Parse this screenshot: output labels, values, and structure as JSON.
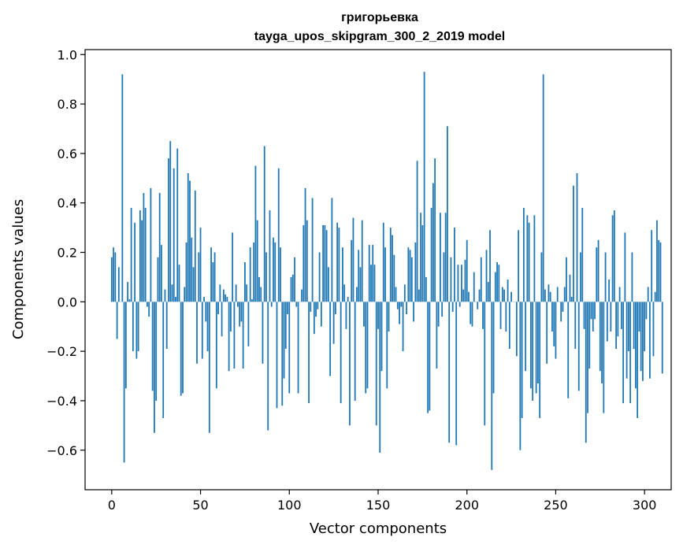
{
  "chart_data": {
    "type": "bar",
    "title": "григорьевка",
    "subtitle": "tayga_upos_skipgram_300_2_2019 model",
    "xlabel": "Vector components",
    "ylabel": "Components values",
    "xlim": [
      -15,
      315
    ],
    "ylim": [
      -0.76,
      1.02
    ],
    "xticks": [
      0,
      50,
      100,
      150,
      200,
      250,
      300
    ],
    "yticks": [
      -0.6,
      -0.4,
      -0.2,
      0.0,
      0.2,
      0.4,
      0.6,
      0.8,
      1.0
    ],
    "ytick_labels": [
      "−0.6",
      "−0.4",
      "−0.2",
      "0.0",
      "0.2",
      "0.4",
      "0.6",
      "0.8",
      "1.0"
    ],
    "xtick_labels": [
      "0",
      "50",
      "100",
      "150",
      "200",
      "250",
      "300"
    ],
    "grid": false,
    "bar_color": "#1f77b4",
    "values": [
      0.18,
      0.22,
      0.2,
      -0.15,
      0.14,
      0.0,
      0.92,
      -0.65,
      -0.35,
      0.08,
      0.01,
      0.38,
      -0.2,
      0.32,
      -0.23,
      -0.2,
      0.37,
      0.33,
      0.44,
      0.38,
      -0.02,
      -0.06,
      0.46,
      -0.36,
      -0.53,
      -0.4,
      0.18,
      0.44,
      0.23,
      -0.47,
      0.05,
      -0.19,
      0.58,
      0.65,
      0.07,
      0.54,
      0.02,
      0.62,
      0.15,
      -0.38,
      -0.37,
      0.06,
      0.24,
      0.52,
      0.49,
      0.26,
      0.14,
      0.45,
      -0.25,
      0.2,
      0.3,
      -0.23,
      0.02,
      -0.08,
      -0.2,
      -0.53,
      0.22,
      0.16,
      0.2,
      -0.35,
      -0.05,
      0.07,
      -0.14,
      0.05,
      0.03,
      0.02,
      -0.28,
      -0.12,
      0.28,
      -0.27,
      0.07,
      -0.02,
      -0.1,
      -0.08,
      -0.27,
      0.16,
      0.07,
      -0.18,
      0.22,
      0.01,
      0.24,
      0.55,
      0.33,
      0.1,
      0.06,
      -0.25,
      0.63,
      0.2,
      -0.52,
      0.37,
      -0.02,
      0.26,
      0.24,
      -0.43,
      0.54,
      0.22,
      -0.42,
      -0.31,
      -0.19,
      -0.05,
      -0.37,
      0.1,
      0.11,
      0.18,
      -0.02,
      -0.37,
      0.0,
      0.05,
      0.31,
      0.46,
      0.33,
      -0.41,
      -0.04,
      0.42,
      -0.13,
      -0.06,
      -0.03,
      0.2,
      -0.1,
      0.31,
      0.31,
      0.29,
      0.14,
      -0.3,
      0.42,
      -0.17,
      -0.05,
      0.32,
      0.3,
      -0.41,
      0.22,
      0.07,
      -0.11,
      0.02,
      -0.5,
      0.25,
      0.34,
      -0.4,
      0.06,
      0.21,
      0.14,
      0.33,
      -0.1,
      -0.37,
      -0.35,
      0.23,
      0.15,
      0.23,
      0.15,
      -0.5,
      -0.11,
      -0.61,
      -0.28,
      0.32,
      0.22,
      -0.35,
      -0.12,
      0.3,
      0.27,
      0.19,
      0.06,
      -0.03,
      -0.09,
      -0.02,
      -0.2,
      0.07,
      -0.05,
      0.22,
      0.21,
      0.18,
      -0.08,
      0.24,
      0.57,
      0.05,
      0.36,
      0.31,
      0.93,
      0.1,
      -0.45,
      -0.44,
      0.38,
      0.48,
      0.58,
      -0.27,
      -0.1,
      0.36,
      -0.06,
      0.2,
      0.36,
      0.71,
      -0.57,
      0.18,
      -0.04,
      0.3,
      -0.58,
      0.15,
      -0.02,
      0.15,
      0.05,
      0.17,
      0.25,
      0.04,
      -0.09,
      -0.1,
      0.12,
      0.0,
      -0.03,
      0.05,
      0.18,
      -0.11,
      -0.5,
      0.21,
      0.08,
      0.29,
      -0.68,
      -0.37,
      0.12,
      0.16,
      0.15,
      -0.11,
      0.06,
      0.05,
      -0.12,
      0.09,
      -0.19,
      0.04,
      0.0,
      0.0,
      -0.22,
      0.29,
      -0.6,
      -0.47,
      0.38,
      -0.28,
      0.35,
      0.32,
      -0.35,
      -0.4,
      0.35,
      -0.37,
      -0.33,
      -0.47,
      0.2,
      0.92,
      0.05,
      -0.25,
      0.07,
      0.04,
      -0.12,
      -0.18,
      -0.23,
      0.06,
      0.0,
      -0.08,
      -0.04,
      0.06,
      0.18,
      -0.39,
      0.11,
      0.02,
      0.47,
      -0.19,
      0.52,
      -0.36,
      0.2,
      0.38,
      -0.11,
      -0.57,
      -0.45,
      -0.27,
      -0.07,
      -0.12,
      -0.07,
      0.22,
      0.25,
      -0.28,
      -0.33,
      -0.45,
      0.2,
      -0.16,
      0.09,
      -0.12,
      0.35,
      0.37,
      -0.19,
      -0.14,
      0.06,
      -0.11,
      -0.41,
      0.28,
      -0.31,
      -0.2,
      -0.41,
      0.2,
      -0.19,
      -0.35,
      -0.47,
      -0.12,
      -0.28,
      -0.32,
      -0.2,
      -0.07,
      0.06,
      -0.31,
      0.29,
      -0.22,
      0.04,
      0.33,
      0.25,
      0.24,
      -0.29
    ]
  }
}
